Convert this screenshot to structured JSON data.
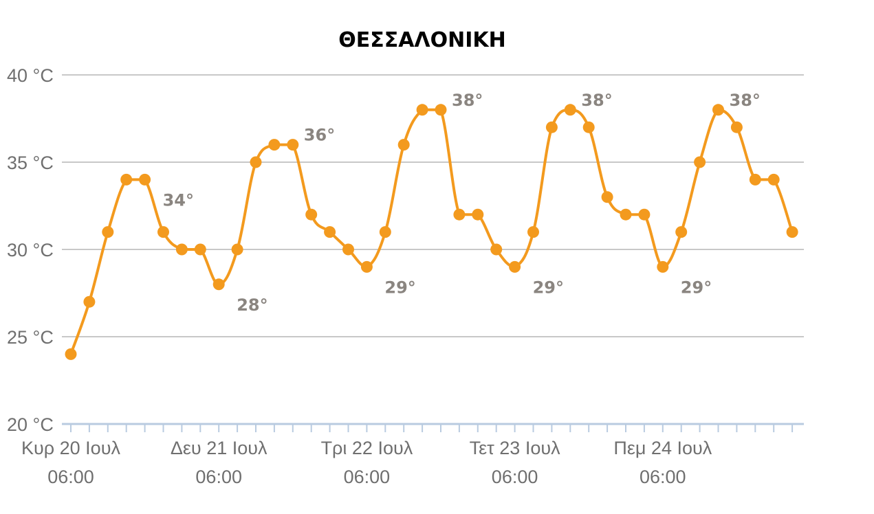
{
  "chart_data": {
    "type": "line",
    "title": "ΘΕΣΣΑΛΟΝΙΚΗ",
    "xlabel": "",
    "ylabel": "",
    "ylim": [
      20,
      40
    ],
    "grid": true,
    "color": "#f39a1e",
    "y_ticks": [
      {
        "value": 40,
        "label": "40 °C"
      },
      {
        "value": 35,
        "label": "35 °C"
      },
      {
        "value": 30,
        "label": "30 °C"
      },
      {
        "value": 25,
        "label": "25 °C"
      },
      {
        "value": 20,
        "label": "20 °C"
      }
    ],
    "x_ticks": [
      {
        "index": 0,
        "day": "Κυρ 20 Ιουλ",
        "time": "06:00"
      },
      {
        "index": 8,
        "day": "Δευ 21 Ιουλ",
        "time": "06:00"
      },
      {
        "index": 16,
        "day": "Τρι 22 Ιουλ",
        "time": "06:00"
      },
      {
        "index": 24,
        "day": "Τετ 23 Ιουλ",
        "time": "06:00"
      },
      {
        "index": 32,
        "day": "Πεμ 24 Ιουλ",
        "time": "06:00"
      }
    ],
    "interval_hours": 3,
    "values": [
      24,
      27,
      31,
      34,
      34,
      31,
      30,
      30,
      28,
      30,
      35,
      36,
      36,
      32,
      31,
      30,
      29,
      31,
      36,
      38,
      38,
      32,
      32,
      30,
      29,
      31,
      37,
      38,
      37,
      33,
      32,
      32,
      29,
      31,
      35,
      38,
      37,
      34,
      34,
      31
    ],
    "annotations": [
      {
        "index": 4,
        "text": "34°",
        "position": "below-right"
      },
      {
        "index": 8,
        "text": "28°",
        "position": "below-right"
      },
      {
        "index": 12,
        "text": "36°",
        "position": "right"
      },
      {
        "index": 16,
        "text": "29°",
        "position": "below-right"
      },
      {
        "index": 20,
        "text": "38°",
        "position": "right"
      },
      {
        "index": 24,
        "text": "29°",
        "position": "below-right"
      },
      {
        "index": 27,
        "text": "38°",
        "position": "right"
      },
      {
        "index": 32,
        "text": "29°",
        "position": "below-right"
      },
      {
        "index": 35,
        "text": "38°",
        "position": "right"
      }
    ]
  }
}
